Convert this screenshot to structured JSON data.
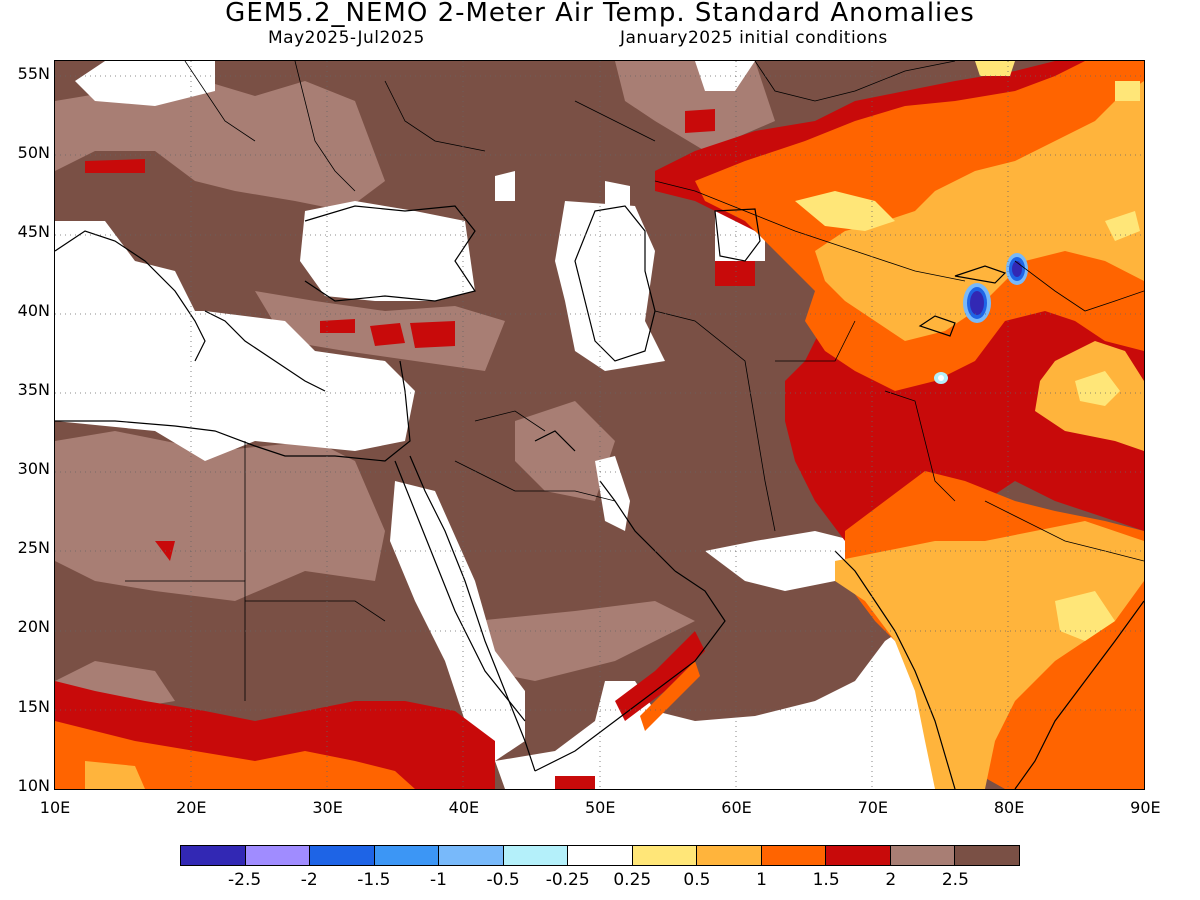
{
  "header": {
    "title": "GEM5.2_NEMO 2-Meter Air Temp. Standard Anomalies",
    "period": "May2025-Jul2025",
    "init": "January2025 initial conditions"
  },
  "map": {
    "lat_labels": [
      "55N",
      "50N",
      "45N",
      "40N",
      "35N",
      "30N",
      "25N",
      "20N",
      "15N",
      "10N"
    ],
    "lon_labels": [
      "10E",
      "20E",
      "30E",
      "40E",
      "50E",
      "60E",
      "70E",
      "80E",
      "90E"
    ],
    "lon_range": [
      10,
      90
    ],
    "lat_range": [
      10,
      56
    ],
    "grid": "dotted"
  },
  "legend": {
    "colors": [
      "#3228b4",
      "#a08cff",
      "#1e64e6",
      "#3c96f5",
      "#78b9fa",
      "#b4f0fa",
      "#ffffff",
      "#ffe678",
      "#ffb43c",
      "#ff6400",
      "#c80a0a",
      "#a87e74",
      "#7a5045"
    ],
    "labels": [
      "-2.5",
      "-2",
      "-1.5",
      "-1",
      "-0.5",
      "-0.25",
      "0.25",
      "0.5",
      "1",
      "1.5",
      "2",
      "2.5"
    ]
  },
  "colors": {
    "brown_dark": "#7a5045",
    "brown_light": "#a87e74",
    "red": "#c80a0a",
    "orange": "#ff6400",
    "light_orange": "#ffb43c",
    "yellow": "#ffe678",
    "blue": "#1e64e6",
    "violet": "#3228b4"
  }
}
